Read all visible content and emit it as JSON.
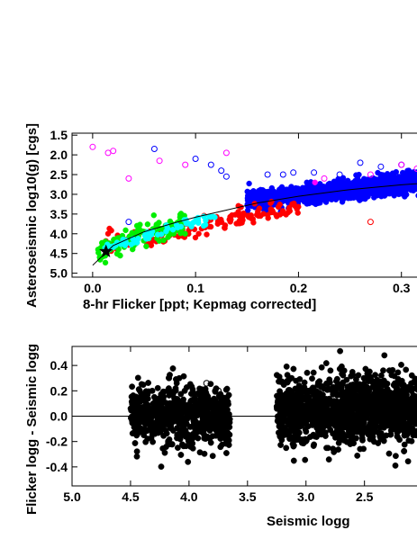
{
  "chart_data": [
    {
      "type": "scatter",
      "title": "",
      "xlabel": "8-hr Flicker [ppt; Kepmag corrected]",
      "ylabel": "Asteroseismic log10(g) [cgs]",
      "xlim": [
        -0.02,
        0.33
      ],
      "ylim": [
        5.1,
        1.45
      ],
      "y_inverted": true,
      "x_ticks": [
        0.0,
        0.1,
        0.2,
        0.3
      ],
      "x_tick_labels": [
        "0.0",
        "0.1",
        "0.2",
        "0.3"
      ],
      "y_ticks": [
        1.5,
        2.0,
        2.5,
        3.0,
        3.5,
        4.0,
        4.5,
        5.0
      ],
      "y_tick_labels": [
        "1.5",
        "2.0",
        "2.5",
        "3.0",
        "3.5",
        "4.0",
        "4.5",
        "5.0"
      ],
      "colors": {
        "blue": "#0000ff",
        "red": "#ff0000",
        "green": "#00ee00",
        "cyan": "#00ffff",
        "magenta": "#ff00ff",
        "black": "#000000"
      },
      "series": [
        {
          "color": "blue",
          "filled": true,
          "x_range": [
            0.15,
            0.33
          ],
          "y_trend": [
            3.15,
            2.65
          ],
          "spread": 0.12,
          "count": 1300
        },
        {
          "color": "red",
          "filled": true,
          "x_range": [
            0.01,
            0.2
          ],
          "y_trend": [
            4.3,
            3.3
          ],
          "spread": 0.12,
          "count": 160
        },
        {
          "color": "green",
          "filled": true,
          "x_range": [
            0.005,
            0.09
          ],
          "y_trend": [
            4.45,
            3.7
          ],
          "spread": 0.15,
          "count": 130
        },
        {
          "color": "cyan",
          "filled": true,
          "x_range": [
            0.01,
            0.12
          ],
          "y_trend": [
            4.4,
            3.55
          ],
          "spread": 0.06,
          "count": 60
        },
        {
          "color": "blue",
          "filled": false,
          "points": [
            [
              0.06,
              1.85
            ],
            [
              0.1,
              2.1
            ],
            [
              0.115,
              2.25
            ],
            [
              0.125,
              2.4
            ],
            [
              0.13,
              2.55
            ],
            [
              0.17,
              2.5
            ],
            [
              0.185,
              2.5
            ],
            [
              0.195,
              2.45
            ],
            [
              0.215,
              2.45
            ],
            [
              0.24,
              2.5
            ],
            [
              0.26,
              2.2
            ],
            [
              0.28,
              2.3
            ],
            [
              0.3,
              2.25
            ],
            [
              0.32,
              2.35
            ],
            [
              0.035,
              3.7
            ]
          ]
        },
        {
          "color": "magenta",
          "filled": false,
          "points": [
            [
              0.0,
              1.8
            ],
            [
              0.015,
              1.95
            ],
            [
              0.02,
              1.9
            ],
            [
              0.035,
              2.6
            ],
            [
              0.065,
              2.15
            ],
            [
              0.09,
              2.25
            ],
            [
              0.13,
              1.95
            ],
            [
              0.225,
              2.6
            ],
            [
              0.27,
              2.5
            ],
            [
              0.3,
              2.25
            ],
            [
              0.315,
              2.35
            ]
          ]
        },
        {
          "color": "magenta",
          "filled": true,
          "points": [
            [
              0.216,
              2.7
            ]
          ]
        },
        {
          "color": "red",
          "filled": false,
          "points": [
            [
              0.27,
              3.7
            ]
          ]
        }
      ],
      "fit_line": {
        "x": [
          0.0,
          0.02,
          0.05,
          0.08,
          0.1,
          0.13,
          0.16,
          0.2,
          0.25,
          0.3,
          0.33
        ],
        "y": [
          4.8,
          4.3,
          3.95,
          3.72,
          3.58,
          3.4,
          3.22,
          3.05,
          2.88,
          2.76,
          2.7
        ]
      },
      "marker_star": {
        "x": 0.013,
        "y": 4.45
      }
    },
    {
      "type": "scatter",
      "title": "",
      "xlabel": "Seismic logg",
      "ylabel": "Flicker logg - Seismic logg",
      "xlim": [
        5.0,
        1.92
      ],
      "x_inverted": true,
      "ylim": [
        -0.55,
        0.55
      ],
      "x_ticks": [
        5.0,
        4.5,
        4.0,
        3.5,
        3.0,
        2.5
      ],
      "x_tick_labels": [
        "5.0",
        "4.5",
        "4.0",
        "3.5",
        "3.0",
        "2.5"
      ],
      "y_ticks": [
        -0.4,
        -0.2,
        0.0,
        0.2,
        0.4
      ],
      "y_tick_labels": [
        "-0.4",
        "-0.2",
        "0.0",
        "0.2",
        "0.4"
      ],
      "zero_line": 0.0,
      "series": [
        {
          "color": "black",
          "filled": true,
          "x_range": [
            3.65,
            4.5
          ],
          "y_center": 0.0,
          "spread": 0.12,
          "count": 700
        },
        {
          "color": "black",
          "filled": true,
          "x_range": [
            1.92,
            3.25
          ],
          "y_center": 0.05,
          "spread": 0.13,
          "count": 1500
        },
        {
          "color": "black",
          "filled": false,
          "points": [
            [
              3.1,
              0.05
            ],
            [
              3.05,
              0.07
            ],
            [
              3.75,
              0.2
            ],
            [
              3.85,
              0.26
            ],
            [
              2.0,
              0.22
            ],
            [
              1.95,
              -0.22
            ]
          ]
        }
      ]
    }
  ]
}
